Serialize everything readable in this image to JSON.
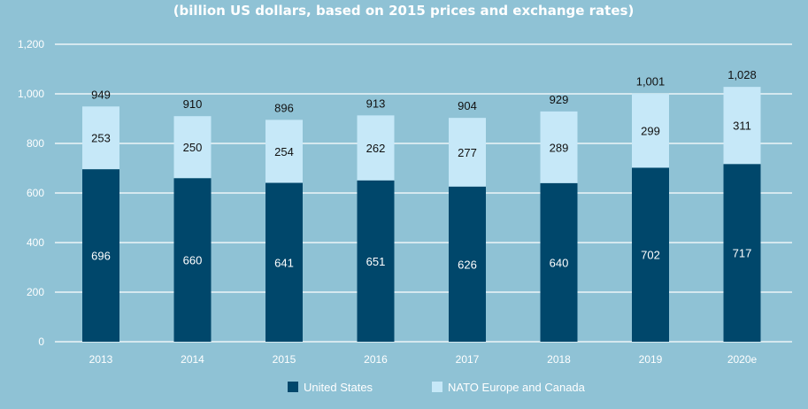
{
  "chart_data": {
    "type": "bar",
    "stacked": true,
    "subtitle": "(billion US dollars, based on 2015 prices and exchange rates)",
    "categories": [
      "2013",
      "2014",
      "2015",
      "2016",
      "2017",
      "2018",
      "2019",
      "2020e"
    ],
    "series": [
      {
        "name": "United States",
        "values": [
          696,
          660,
          641,
          651,
          626,
          640,
          702,
          717
        ],
        "color": "#00476b"
      },
      {
        "name": "NATO Europe and Canada",
        "values": [
          253,
          250,
          254,
          262,
          277,
          289,
          299,
          311
        ],
        "color": "#c6e8f8"
      }
    ],
    "totals": [
      "949",
      "910",
      "896",
      "913",
      "904",
      "929",
      "1,001",
      "1,028"
    ],
    "ylim": [
      0,
      1200
    ],
    "yticks": [
      0,
      200,
      400,
      600,
      800,
      1000,
      1200
    ],
    "ytick_labels": [
      "0",
      "200",
      "400",
      "600",
      "800",
      "1,000",
      "1,200"
    ],
    "grid": true,
    "legend_position": "bottom",
    "colors": {
      "background": "#8fc2d5",
      "gridline": "#ffffff"
    }
  }
}
